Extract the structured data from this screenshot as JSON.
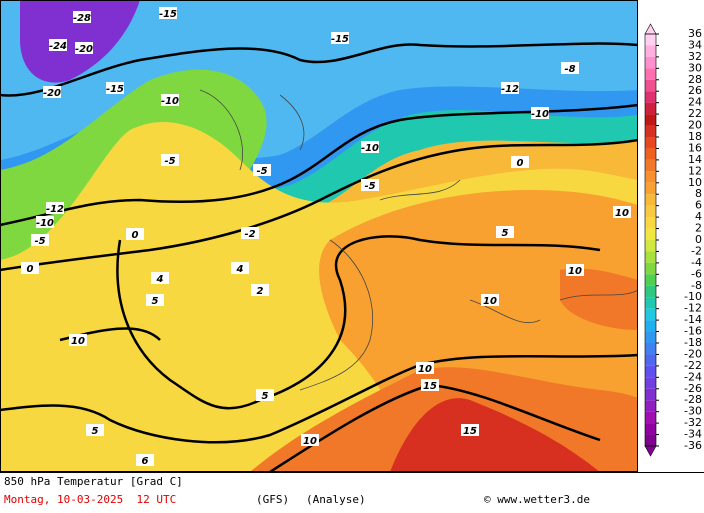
{
  "title": "850 hPa Temperatur [Grad C]",
  "footer": {
    "date": "Montag, 10-03-2025  12 UTC",
    "model": "(GFS)",
    "run": "(Analyse)",
    "credit": "© www.wetter3.de"
  },
  "map_labels": [
    -28,
    -24,
    -20,
    -20,
    -15,
    -15,
    -15,
    -10,
    -10,
    -10,
    -5,
    -5,
    -5,
    0,
    0,
    0,
    -12,
    -10,
    -5,
    5,
    5,
    10,
    10,
    10,
    10,
    10,
    10,
    15,
    15,
    5,
    5,
    4,
    2,
    4,
    -2,
    6,
    -8,
    -12
  ],
  "colorbar": {
    "ticks": [
      36,
      34,
      32,
      30,
      28,
      26,
      24,
      22,
      20,
      18,
      16,
      14,
      12,
      10,
      8,
      6,
      4,
      2,
      0,
      -2,
      -4,
      -6,
      -8,
      -10,
      -12,
      -14,
      -16,
      -18,
      -20,
      -22,
      -24,
      -26,
      -28,
      -30,
      -32,
      -34,
      -36
    ],
    "colors": [
      "#ffd0f0",
      "#ffb0e0",
      "#ff90d0",
      "#ff70b0",
      "#f05090",
      "#e03070",
      "#d02040",
      "#c01818",
      "#d83020",
      "#e84820",
      "#f06020",
      "#f07828",
      "#f89030",
      "#f8a030",
      "#f8b838",
      "#f8c840",
      "#f8d840",
      "#f0e840",
      "#d0e840",
      "#a8e040",
      "#80d840",
      "#50d050",
      "#30c880",
      "#20c8b0",
      "#20c8e0",
      "#20b0f0",
      "#3098f0",
      "#4080f0",
      "#5068f0",
      "#6050f0",
      "#7040e0",
      "#8030d0",
      "#9020c0",
      "#a010b0",
      "#9000a0",
      "#800090"
    ]
  }
}
